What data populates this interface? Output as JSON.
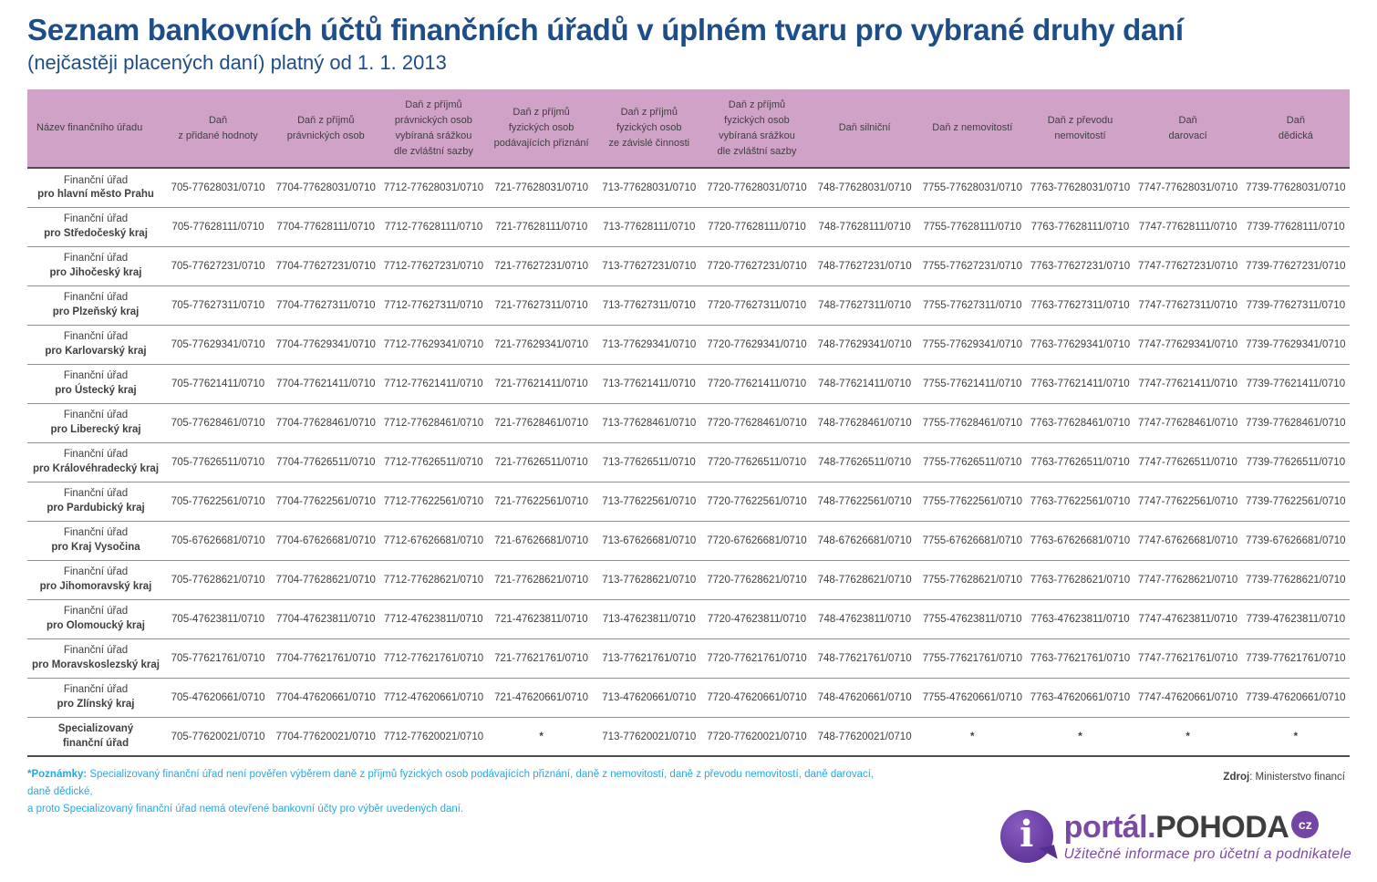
{
  "page": {
    "title": "Seznam bankovních účtů finančních úřadů v úplném tvaru pro vybrané druhy daní",
    "subtitle": "(nejčastěji placených daní) platný od 1. 1. 2013"
  },
  "table": {
    "asterisk_symbol": "*",
    "columns": [
      "Název finančního úřadu",
      "Daň\nz přidané hodnoty",
      "Daň z příjmů\nprávnických osob",
      "Daň z příjmů\nprávnických osob\nvybíraná srážkou\ndle zvláštní sazby",
      "Daň z příjmů\nfyzických osob\npodávajících přiznání",
      "Daň z příjmů\nfyzických osob\nze závislé činnosti",
      "Daň z příjmů\nfyzických osob\nvybíraná srážkou\ndle zvláštní sazby",
      "Daň silniční",
      "Daň z nemovitostí",
      "Daň z převodu\nnemovitostí",
      "Daň\ndarovací",
      "Daň\ndědická"
    ],
    "rows": [
      {
        "name_line1": "Finanční úřad",
        "name_line2": "pro hlavní město Prahu",
        "bold_all": false,
        "accounts": [
          "705-77628031/0710",
          "7704-77628031/0710",
          "7712-77628031/0710",
          "721-77628031/0710",
          "713-77628031/0710",
          "7720-77628031/0710",
          "748-77628031/0710",
          "7755-77628031/0710",
          "7763-77628031/0710",
          "7747-77628031/0710",
          "7739-77628031/0710"
        ]
      },
      {
        "name_line1": "Finanční úřad",
        "name_line2": "pro Středočeský kraj",
        "bold_all": false,
        "accounts": [
          "705-77628111/0710",
          "7704-77628111/0710",
          "7712-77628111/0710",
          "721-77628111/0710",
          "713-77628111/0710",
          "7720-77628111/0710",
          "748-77628111/0710",
          "7755-77628111/0710",
          "7763-77628111/0710",
          "7747-77628111/0710",
          "7739-77628111/0710"
        ]
      },
      {
        "name_line1": "Finanční úřad",
        "name_line2": "pro Jihočeský kraj",
        "bold_all": false,
        "accounts": [
          "705-77627231/0710",
          "7704-77627231/0710",
          "7712-77627231/0710",
          "721-77627231/0710",
          "713-77627231/0710",
          "7720-77627231/0710",
          "748-77627231/0710",
          "7755-77627231/0710",
          "7763-77627231/0710",
          "7747-77627231/0710",
          "7739-77627231/0710"
        ]
      },
      {
        "name_line1": "Finanční úřad",
        "name_line2": "pro Plzeňský kraj",
        "bold_all": false,
        "accounts": [
          "705-77627311/0710",
          "7704-77627311/0710",
          "7712-77627311/0710",
          "721-77627311/0710",
          "713-77627311/0710",
          "7720-77627311/0710",
          "748-77627311/0710",
          "7755-77627311/0710",
          "7763-77627311/0710",
          "7747-77627311/0710",
          "7739-77627311/0710"
        ]
      },
      {
        "name_line1": "Finanční úřad",
        "name_line2": "pro Karlovarský kraj",
        "bold_all": false,
        "accounts": [
          "705-77629341/0710",
          "7704-77629341/0710",
          "7712-77629341/0710",
          "721-77629341/0710",
          "713-77629341/0710",
          "7720-77629341/0710",
          "748-77629341/0710",
          "7755-77629341/0710",
          "7763-77629341/0710",
          "7747-77629341/0710",
          "7739-77629341/0710"
        ]
      },
      {
        "name_line1": "Finanční úřad",
        "name_line2": "pro Ústecký kraj",
        "bold_all": false,
        "accounts": [
          "705-77621411/0710",
          "7704-77621411/0710",
          "7712-77621411/0710",
          "721-77621411/0710",
          "713-77621411/0710",
          "7720-77621411/0710",
          "748-77621411/0710",
          "7755-77621411/0710",
          "7763-77621411/0710",
          "7747-77621411/0710",
          "7739-77621411/0710"
        ]
      },
      {
        "name_line1": "Finanční úřad",
        "name_line2": "pro Liberecký kraj",
        "bold_all": false,
        "accounts": [
          "705-77628461/0710",
          "7704-77628461/0710",
          "7712-77628461/0710",
          "721-77628461/0710",
          "713-77628461/0710",
          "7720-77628461/0710",
          "748-77628461/0710",
          "7755-77628461/0710",
          "7763-77628461/0710",
          "7747-77628461/0710",
          "7739-77628461/0710"
        ]
      },
      {
        "name_line1": "Finanční úřad",
        "name_line2": "pro Královéhradecký kraj",
        "bold_all": false,
        "accounts": [
          "705-77626511/0710",
          "7704-77626511/0710",
          "7712-77626511/0710",
          "721-77626511/0710",
          "713-77626511/0710",
          "7720-77626511/0710",
          "748-77626511/0710",
          "7755-77626511/0710",
          "7763-77626511/0710",
          "7747-77626511/0710",
          "7739-77626511/0710"
        ]
      },
      {
        "name_line1": "Finanční úřad",
        "name_line2": "pro Pardubický kraj",
        "bold_all": false,
        "accounts": [
          "705-77622561/0710",
          "7704-77622561/0710",
          "7712-77622561/0710",
          "721-77622561/0710",
          "713-77622561/0710",
          "7720-77622561/0710",
          "748-77622561/0710",
          "7755-77622561/0710",
          "7763-77622561/0710",
          "7747-77622561/0710",
          "7739-77622561/0710"
        ]
      },
      {
        "name_line1": "Finanční úřad",
        "name_line2": "pro Kraj Vysočina",
        "bold_all": false,
        "accounts": [
          "705-67626681/0710",
          "7704-67626681/0710",
          "7712-67626681/0710",
          "721-67626681/0710",
          "713-67626681/0710",
          "7720-67626681/0710",
          "748-67626681/0710",
          "7755-67626681/0710",
          "7763-67626681/0710",
          "7747-67626681/0710",
          "7739-67626681/0710"
        ]
      },
      {
        "name_line1": "Finanční úřad",
        "name_line2": "pro Jihomoravský kraj",
        "bold_all": false,
        "accounts": [
          "705-77628621/0710",
          "7704-77628621/0710",
          "7712-77628621/0710",
          "721-77628621/0710",
          "713-77628621/0710",
          "7720-77628621/0710",
          "748-77628621/0710",
          "7755-77628621/0710",
          "7763-77628621/0710",
          "7747-77628621/0710",
          "7739-77628621/0710"
        ]
      },
      {
        "name_line1": "Finanční úřad",
        "name_line2": "pro Olomoucký kraj",
        "bold_all": false,
        "accounts": [
          "705-47623811/0710",
          "7704-47623811/0710",
          "7712-47623811/0710",
          "721-47623811/0710",
          "713-47623811/0710",
          "7720-47623811/0710",
          "748-47623811/0710",
          "7755-47623811/0710",
          "7763-47623811/0710",
          "7747-47623811/0710",
          "7739-47623811/0710"
        ]
      },
      {
        "name_line1": "Finanční úřad",
        "name_line2": "pro Moravskoslezský kraj",
        "bold_all": false,
        "accounts": [
          "705-77621761/0710",
          "7704-77621761/0710",
          "7712-77621761/0710",
          "721-77621761/0710",
          "713-77621761/0710",
          "7720-77621761/0710",
          "748-77621761/0710",
          "7755-77621761/0710",
          "7763-77621761/0710",
          "7747-77621761/0710",
          "7739-77621761/0710"
        ]
      },
      {
        "name_line1": "Finanční úřad",
        "name_line2": "pro Zlínský kraj",
        "bold_all": false,
        "accounts": [
          "705-47620661/0710",
          "7704-47620661/0710",
          "7712-47620661/0710",
          "721-47620661/0710",
          "713-47620661/0710",
          "7720-47620661/0710",
          "748-47620661/0710",
          "7755-47620661/0710",
          "7763-47620661/0710",
          "7747-47620661/0710",
          "7739-47620661/0710"
        ]
      },
      {
        "name_line1": "Specializovaný",
        "name_line2": "finanční úřad",
        "bold_all": true,
        "accounts": [
          "705-77620021/0710",
          "7704-77620021/0710",
          "7712-77620021/0710",
          "*",
          "713-77620021/0710",
          "7720-77620021/0710",
          "748-77620021/0710",
          "*",
          "*",
          "*",
          "*"
        ]
      }
    ]
  },
  "footnote": {
    "label": "*Poznámky:",
    "line1_rest": " Specializovaný finanční úřad není pověřen výběrem daně z příjmů fyzických osob podávajících přiznání, daně z nemovitostí, daně z převodu nemovitostí, daně darovací, daně dědické,",
    "line2": "a proto Specializovaný finanční úřad nemá otevřené bankovní účty pro výběr uvedených daní."
  },
  "source": {
    "label": "Zdroj",
    "value": ": Ministerstvo financí"
  },
  "logo": {
    "info_glyph": "i",
    "portal": "portál.",
    "pohoda": "POHODA",
    "cz": "cz",
    "tagline": "Užitečné informace pro účetní a podnikatele"
  },
  "colors": {
    "title_blue": "#1d4e89",
    "header_pink": "#d0a2c8",
    "body_text": "#3f3f3f",
    "note_blue": "#29a8e0",
    "logo_purple": "#7b4aa3",
    "logo_purple_dark": "#552f8e",
    "pohoda_gray": "#3e3d40"
  }
}
